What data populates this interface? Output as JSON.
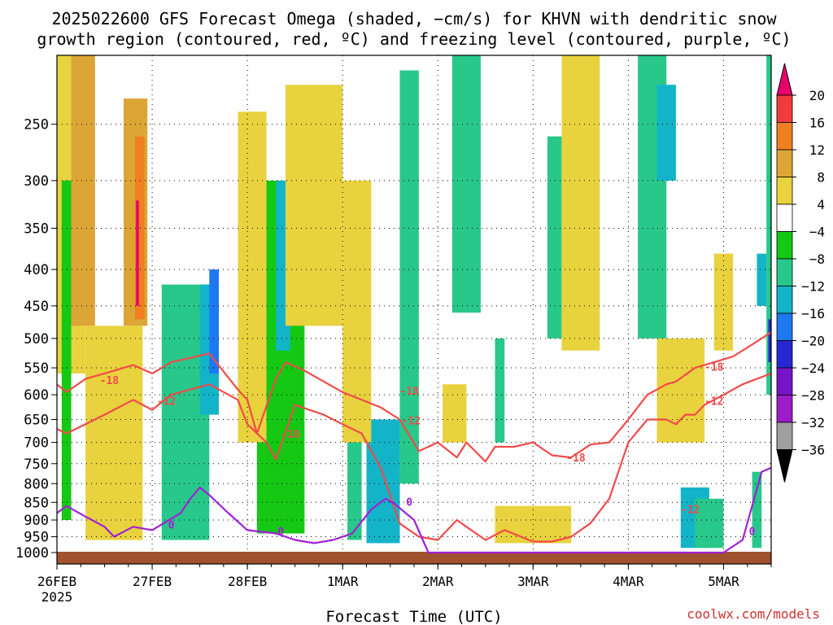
{
  "title_line1": "2025022600 GFS Forecast Omega (shaded, −cm/s) for KHVN with dendritic snow",
  "title_line2": "growth region (contoured, red, ºC) and freezing level (contoured, purple, ºC)",
  "xlabel": "Forecast Time (UTC)",
  "credit": "coolwx.com/models",
  "chart_data": {
    "type": "heatmap",
    "title": "2025022600 GFS Forecast Omega (shaded, −cm/s) for KHVN with dendritic snow growth region (contoured, red, ºC) and freezing level (contoured, purple, ºC)",
    "xlabel": "Forecast Time (UTC)",
    "ylabel": "",
    "x_range": [
      "2025-02-26T00",
      "2025-03-05T12"
    ],
    "x_ticks": [
      {
        "date": "2025-02-26",
        "label": "26FEB",
        "sub": "2025"
      },
      {
        "date": "2025-02-27",
        "label": "27FEB"
      },
      {
        "date": "2025-02-28",
        "label": "28FEB"
      },
      {
        "date": "2025-03-01",
        "label": "1MAR"
      },
      {
        "date": "2025-03-02",
        "label": "2MAR"
      },
      {
        "date": "2025-03-03",
        "label": "3MAR"
      },
      {
        "date": "2025-03-04",
        "label": "4MAR"
      },
      {
        "date": "2025-03-05",
        "label": "5MAR"
      }
    ],
    "y_range": [
      1000,
      200
    ],
    "y_ticks": [
      250,
      300,
      350,
      400,
      450,
      500,
      550,
      600,
      650,
      700,
      750,
      800,
      850,
      900,
      950,
      1000
    ],
    "grid": true,
    "colorbar": {
      "labels": [
        "20",
        "16",
        "12",
        "8",
        "4",
        "−4",
        "−8",
        "−12",
        "−16",
        "−20",
        "−24",
        "−28",
        "−32",
        "−36"
      ],
      "colors": [
        "#e8006c",
        "#f03c3c",
        "#ee8020",
        "#dca636",
        "#e8d23e",
        "#ffffff",
        "#14c814",
        "#28c88a",
        "#14b4c8",
        "#1e78f0",
        "#2828d2",
        "#7814c8",
        "#9c1cc8",
        "#a0a0a0",
        "#000000"
      ]
    },
    "omega_blocks": [
      {
        "t0": 0.0,
        "t1": 0.3,
        "p0": 200,
        "p1": 560,
        "v": 6
      },
      {
        "t0": 0.15,
        "t1": 0.4,
        "p0": 200,
        "p1": 480,
        "v": 10
      },
      {
        "t0": 0.7,
        "t1": 0.95,
        "p0": 230,
        "p1": 480,
        "v": 8
      },
      {
        "t0": 0.82,
        "t1": 0.92,
        "p0": 260,
        "p1": 470,
        "v": 14
      },
      {
        "t0": 0.83,
        "t1": 0.86,
        "p0": 320,
        "p1": 450,
        "v": 20
      },
      {
        "t0": 0.05,
        "t1": 0.15,
        "p0": 300,
        "p1": 900,
        "v": -7
      },
      {
        "t0": 1.1,
        "t1": 1.6,
        "p0": 420,
        "p1": 960,
        "v": -8
      },
      {
        "t0": 1.5,
        "t1": 1.7,
        "p0": 420,
        "p1": 640,
        "v": -12
      },
      {
        "t0": 1.6,
        "t1": 1.7,
        "p0": 400,
        "p1": 560,
        "v": -18
      },
      {
        "t0": 2.1,
        "t1": 2.6,
        "p0": 300,
        "p1": 940,
        "v": -7
      },
      {
        "t0": 2.3,
        "t1": 2.45,
        "p0": 300,
        "p1": 520,
        "v": -13
      },
      {
        "t0": 3.05,
        "t1": 3.2,
        "p0": 400,
        "p1": 960,
        "v": -9
      },
      {
        "t0": 3.25,
        "t1": 3.6,
        "p0": 650,
        "p1": 970,
        "v": -12
      },
      {
        "t0": 3.4,
        "t1": 3.6,
        "p0": 800,
        "p1": 960,
        "v": -15
      },
      {
        "t0": 3.6,
        "t1": 3.8,
        "p0": 210,
        "p1": 800,
        "v": -8
      },
      {
        "t0": 4.15,
        "t1": 4.45,
        "p0": 200,
        "p1": 460,
        "v": -8
      },
      {
        "t0": 4.6,
        "t1": 4.7,
        "p0": 500,
        "p1": 700,
        "v": -8
      },
      {
        "t0": 5.15,
        "t1": 5.3,
        "p0": 260,
        "p1": 500,
        "v": -10
      },
      {
        "t0": 5.45,
        "t1": 5.55,
        "p0": 200,
        "p1": 300,
        "v": -14
      },
      {
        "t0": 6.1,
        "t1": 6.4,
        "p0": 200,
        "p1": 500,
        "v": -8
      },
      {
        "t0": 6.3,
        "t1": 6.5,
        "p0": 220,
        "p1": 300,
        "v": -14
      },
      {
        "t0": 6.55,
        "t1": 6.85,
        "p0": 810,
        "p1": 985,
        "v": -13
      },
      {
        "t0": 6.7,
        "t1": 7.0,
        "p0": 840,
        "p1": 985,
        "v": -8
      },
      {
        "t0": 7.35,
        "t1": 7.45,
        "p0": 380,
        "p1": 450,
        "v": -14
      },
      {
        "t0": 7.3,
        "t1": 7.4,
        "p0": 770,
        "p1": 985,
        "v": -8
      },
      {
        "t0": 7.45,
        "t1": 7.55,
        "p0": 200,
        "p1": 600,
        "v": -8
      },
      {
        "t0": 7.47,
        "t1": 7.52,
        "p0": 470,
        "p1": 540,
        "v": -22
      },
      {
        "t0": 0.3,
        "t1": 0.9,
        "p0": 480,
        "p1": 960,
        "v": 5
      },
      {
        "t0": 1.9,
        "t1": 2.2,
        "p0": 240,
        "p1": 700,
        "v": 6
      },
      {
        "t0": 2.4,
        "t1": 3.0,
        "p0": 220,
        "p1": 480,
        "v": 6
      },
      {
        "t0": 3.0,
        "t1": 3.3,
        "p0": 300,
        "p1": 700,
        "v": 6
      },
      {
        "t0": 4.05,
        "t1": 4.3,
        "p0": 580,
        "p1": 700,
        "v": 5
      },
      {
        "t0": 5.3,
        "t1": 5.7,
        "p0": 200,
        "p1": 520,
        "v": 5
      },
      {
        "t0": 4.6,
        "t1": 5.4,
        "p0": 860,
        "p1": 970,
        "v": 5
      },
      {
        "t0": 6.3,
        "t1": 6.8,
        "p0": 500,
        "p1": 700,
        "v": 5
      },
      {
        "t0": 6.9,
        "t1": 7.1,
        "p0": 380,
        "p1": 520,
        "v": 5
      }
    ],
    "contours": [
      {
        "value": -18,
        "color": "#f24a4a",
        "label": "-18",
        "t": [
          0.0,
          0.1,
          0.3,
          0.5,
          0.8,
          1.0,
          1.2,
          1.6,
          1.9,
          2.0,
          2.1,
          2.3,
          2.4,
          2.6,
          3.0,
          3.4,
          3.6,
          3.8,
          4.0,
          4.2,
          4.3,
          4.5,
          4.6,
          4.8,
          5.0,
          5.2,
          5.4,
          5.6,
          5.8,
          6.0,
          6.2,
          6.4,
          6.5,
          6.7,
          6.9,
          7.1,
          7.3,
          7.5
        ],
        "p": [
          580,
          595,
          570,
          560,
          545,
          560,
          540,
          525,
          590,
          610,
          680,
          570,
          540,
          555,
          595,
          625,
          650,
          720,
          700,
          735,
          700,
          745,
          710,
          710,
          700,
          730,
          735,
          705,
          700,
          650,
          600,
          580,
          575,
          550,
          540,
          530,
          510,
          490
        ]
      },
      {
        "value": -12,
        "color": "#f24a4a",
        "label": "-12",
        "t": [
          0.0,
          0.1,
          0.3,
          0.5,
          0.8,
          1.0,
          1.2,
          1.6,
          1.9,
          2.0,
          2.2,
          2.3,
          2.5,
          2.8,
          3.0,
          3.2,
          3.4,
          3.6,
          3.8,
          4.0,
          4.2,
          4.3,
          4.5,
          4.7,
          5.0,
          5.2,
          5.4,
          5.6,
          5.8,
          6.0,
          6.2,
          6.4,
          6.5,
          6.6,
          6.7,
          6.8,
          7.0,
          7.2,
          7.5
        ],
        "p": [
          670,
          680,
          660,
          640,
          610,
          630,
          600,
          580,
          610,
          660,
          700,
          740,
          620,
          640,
          660,
          680,
          760,
          910,
          950,
          960,
          900,
          920,
          960,
          930,
          965,
          965,
          950,
          910,
          840,
          700,
          650,
          650,
          660,
          640,
          640,
          620,
          600,
          580,
          560
        ]
      },
      {
        "value": 0,
        "color": "#a020d8",
        "label": "0",
        "t": [
          0.0,
          0.1,
          0.3,
          0.5,
          0.6,
          0.8,
          1.0,
          1.3,
          1.4,
          1.5,
          1.6,
          1.8,
          2.0,
          2.3,
          2.5,
          2.7,
          2.9,
          3.1,
          3.3,
          3.45,
          3.55,
          3.75,
          3.9,
          4.0,
          4.2,
          4.4,
          4.6,
          4.8,
          5.0,
          5.2,
          5.4,
          5.6,
          5.8,
          6.0,
          6.2,
          6.4,
          6.6,
          6.8,
          7.0,
          7.2,
          7.4,
          7.5
        ],
        "p": [
          880,
          860,
          890,
          920,
          950,
          920,
          930,
          880,
          840,
          810,
          830,
          880,
          930,
          940,
          960,
          970,
          960,
          940,
          870,
          840,
          855,
          900,
          1010,
          1010,
          1010,
          1010,
          1010,
          1010,
          1010,
          1010,
          1010,
          1010,
          1010,
          1010,
          1010,
          1010,
          1010,
          1010,
          1000,
          960,
          770,
          760
        ]
      }
    ],
    "contour_labels": [
      {
        "t": 0.55,
        "p": 580,
        "text": "-18"
      },
      {
        "t": 1.15,
        "p": 620,
        "text": "-12"
      },
      {
        "t": 1.2,
        "p": 925,
        "text": "0"
      },
      {
        "t": 2.45,
        "p": 690,
        "text": "-18"
      },
      {
        "t": 2.35,
        "p": 945,
        "text": "0"
      },
      {
        "t": 3.7,
        "p": 600,
        "text": "-18"
      },
      {
        "t": 3.72,
        "p": 660,
        "text": "-12"
      },
      {
        "t": 3.7,
        "p": 860,
        "text": "0"
      },
      {
        "t": 5.45,
        "p": 745,
        "text": "-18"
      },
      {
        "t": 6.65,
        "p": 880,
        "text": "-12"
      },
      {
        "t": 6.9,
        "p": 555,
        "text": "-18"
      },
      {
        "t": 6.9,
        "p": 620,
        "text": "-12"
      },
      {
        "t": 7.3,
        "p": 945,
        "text": "0"
      }
    ],
    "terrain_color": "#a0522d"
  }
}
